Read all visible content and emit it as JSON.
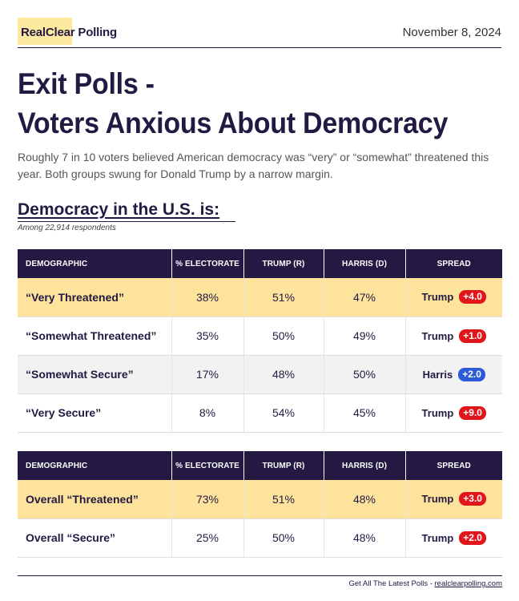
{
  "header": {
    "logo_real": "RealClear",
    "logo_polling": "Polling",
    "date": "November 8, 2024"
  },
  "title": {
    "line1": "Exit Polls -",
    "line2": "Voters Anxious About Democracy"
  },
  "subtitle": "Roughly 7 in 10 voters believed American democracy was “very” or “somewhat” threatened this year. Both groups swung for Donald Trump by a narrow margin.",
  "section": {
    "title": "Democracy in the U.S. is:",
    "subtitle": "Among 22,914 respondents"
  },
  "columns": [
    "DEMOGRAPHIC",
    "% ELECTORATE",
    "TRUMP (R)",
    "HARRIS (D)",
    "SPREAD"
  ],
  "table1": [
    {
      "demographic": "“Very Threatened”",
      "electorate": "38%",
      "trump": "51%",
      "harris": "47%",
      "leader": "Trump",
      "margin": "+4.0",
      "party": "r",
      "style": "hl"
    },
    {
      "demographic": "“Somewhat Threatened”",
      "electorate": "35%",
      "trump": "50%",
      "harris": "49%",
      "leader": "Trump",
      "margin": "+1.0",
      "party": "r",
      "style": ""
    },
    {
      "demographic": "“Somewhat Secure”",
      "electorate": "17%",
      "trump": "48%",
      "harris": "50%",
      "leader": "Harris",
      "margin": "+2.0",
      "party": "d",
      "style": "alt"
    },
    {
      "demographic": "“Very Secure”",
      "electorate": "8%",
      "trump": "54%",
      "harris": "45%",
      "leader": "Trump",
      "margin": "+9.0",
      "party": "r",
      "style": ""
    }
  ],
  "table2": [
    {
      "demographic": "Overall “Threatened”",
      "electorate": "73%",
      "trump": "51%",
      "harris": "48%",
      "leader": "Trump",
      "margin": "+3.0",
      "party": "r",
      "style": "hl"
    },
    {
      "demographic": "Overall “Secure”",
      "electorate": "25%",
      "trump": "50%",
      "harris": "48%",
      "leader": "Trump",
      "margin": "+2.0",
      "party": "r",
      "style": ""
    }
  ],
  "footer": {
    "text": "Get All The Latest Polls - ",
    "link": "realclearpolling.com"
  },
  "colors": {
    "brand_dark": "#231942",
    "highlight": "#fde39c",
    "republican": "#e2151b",
    "democrat": "#2c5ad8"
  }
}
